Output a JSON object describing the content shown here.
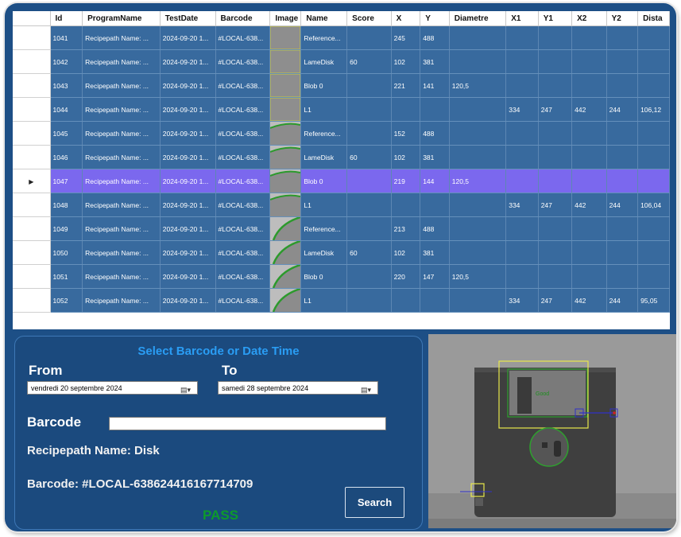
{
  "table": {
    "columns": [
      "Id",
      "ProgramName",
      "TestDate",
      "Barcode",
      "Image",
      "Name",
      "Score",
      "X",
      "Y",
      "Diametre",
      "X1",
      "Y1",
      "X2",
      "Y2",
      "Dista"
    ],
    "rows": [
      {
        "id": "1041",
        "program": "Recipepath Name: ...",
        "date": "2024-09-20 1...",
        "barcode": "#LOCAL-638...",
        "name": "Reference...",
        "score": "",
        "x": "245",
        "y": "488",
        "diametre": "",
        "x1": "",
        "y1": "",
        "x2": "",
        "y2": "",
        "dista": "",
        "thumb": "a"
      },
      {
        "id": "1042",
        "program": "Recipepath Name: ...",
        "date": "2024-09-20 1...",
        "barcode": "#LOCAL-638...",
        "name": "LameDisk",
        "score": "60",
        "x": "102",
        "y": "381",
        "diametre": "",
        "x1": "",
        "y1": "",
        "x2": "",
        "y2": "",
        "dista": "",
        "thumb": "a"
      },
      {
        "id": "1043",
        "program": "Recipepath Name: ...",
        "date": "2024-09-20 1...",
        "barcode": "#LOCAL-638...",
        "name": "Blob 0",
        "score": "",
        "x": "221",
        "y": "141",
        "diametre": "120,5",
        "x1": "",
        "y1": "",
        "x2": "",
        "y2": "",
        "dista": "",
        "thumb": "a"
      },
      {
        "id": "1044",
        "program": "Recipepath Name: ...",
        "date": "2024-09-20 1...",
        "barcode": "#LOCAL-638...",
        "name": "L1",
        "score": "",
        "x": "",
        "y": "",
        "diametre": "",
        "x1": "334",
        "y1": "247",
        "x2": "442",
        "y2": "244",
        "dista": "106,12",
        "thumb": "a"
      },
      {
        "id": "1045",
        "program": "Recipepath Name: ...",
        "date": "2024-09-20 1...",
        "barcode": "#LOCAL-638...",
        "name": "Reference...",
        "score": "",
        "x": "152",
        "y": "488",
        "diametre": "",
        "x1": "",
        "y1": "",
        "x2": "",
        "y2": "",
        "dista": "",
        "thumb": "b"
      },
      {
        "id": "1046",
        "program": "Recipepath Name: ...",
        "date": "2024-09-20 1...",
        "barcode": "#LOCAL-638...",
        "name": "LameDisk",
        "score": "60",
        "x": "102",
        "y": "381",
        "diametre": "",
        "x1": "",
        "y1": "",
        "x2": "",
        "y2": "",
        "dista": "",
        "thumb": "b"
      },
      {
        "id": "1047",
        "program": "Recipepath Name: ...",
        "date": "2024-09-20 1...",
        "barcode": "#LOCAL-638...",
        "name": "Blob 0",
        "score": "",
        "x": "219",
        "y": "144",
        "diametre": "120,5",
        "x1": "",
        "y1": "",
        "x2": "",
        "y2": "",
        "dista": "",
        "thumb": "b",
        "selected": true
      },
      {
        "id": "1048",
        "program": "Recipepath Name: ...",
        "date": "2024-09-20 1...",
        "barcode": "#LOCAL-638...",
        "name": "L1",
        "score": "",
        "x": "",
        "y": "",
        "diametre": "",
        "x1": "334",
        "y1": "247",
        "x2": "442",
        "y2": "244",
        "dista": "106,04",
        "thumb": "b"
      },
      {
        "id": "1049",
        "program": "Recipepath Name: ...",
        "date": "2024-09-20 1...",
        "barcode": "#LOCAL-638...",
        "name": "Reference...",
        "score": "",
        "x": "213",
        "y": "488",
        "diametre": "",
        "x1": "",
        "y1": "",
        "x2": "",
        "y2": "",
        "dista": "",
        "thumb": "c"
      },
      {
        "id": "1050",
        "program": "Recipepath Name: ...",
        "date": "2024-09-20 1...",
        "barcode": "#LOCAL-638...",
        "name": "LameDisk",
        "score": "60",
        "x": "102",
        "y": "381",
        "diametre": "",
        "x1": "",
        "y1": "",
        "x2": "",
        "y2": "",
        "dista": "",
        "thumb": "c"
      },
      {
        "id": "1051",
        "program": "Recipepath Name: ...",
        "date": "2024-09-20 1...",
        "barcode": "#LOCAL-638...",
        "name": "Blob 0",
        "score": "",
        "x": "220",
        "y": "147",
        "diametre": "120,5",
        "x1": "",
        "y1": "",
        "x2": "",
        "y2": "",
        "dista": "",
        "thumb": "c"
      },
      {
        "id": "1052",
        "program": "Recipepath Name: ...",
        "date": "2024-09-20 1...",
        "barcode": "#LOCAL-638...",
        "name": "L1",
        "score": "",
        "x": "",
        "y": "",
        "diametre": "",
        "x1": "334",
        "y1": "247",
        "x2": "442",
        "y2": "244",
        "dista": "95,05",
        "thumb": "c"
      }
    ]
  },
  "filter": {
    "title": "Select Barcode or Date Time",
    "from_label": "From",
    "to_label": "To",
    "from_date": "vendredi  20 septembre 2024",
    "to_date": "samedi   28 septembre 2024",
    "barcode_label": "Barcode",
    "barcode_value": "",
    "recipe_line": "Recipepath Name:  Disk",
    "barcode_line": "Barcode: #LOCAL-638624416167714709",
    "search_label": "Search",
    "result": "PASS"
  },
  "camera": {
    "overlay_text": "Good"
  },
  "colors": {
    "row_bg": "#386a9e",
    "selected_row": "#7b68ee",
    "panel": "#1b4a7e",
    "title_blue": "#2a9df4",
    "pass_green": "#0d9a2c"
  },
  "icons": {
    "row_pointer": "triangle-right-icon",
    "calendar": "calendar-dropdown-icon"
  }
}
